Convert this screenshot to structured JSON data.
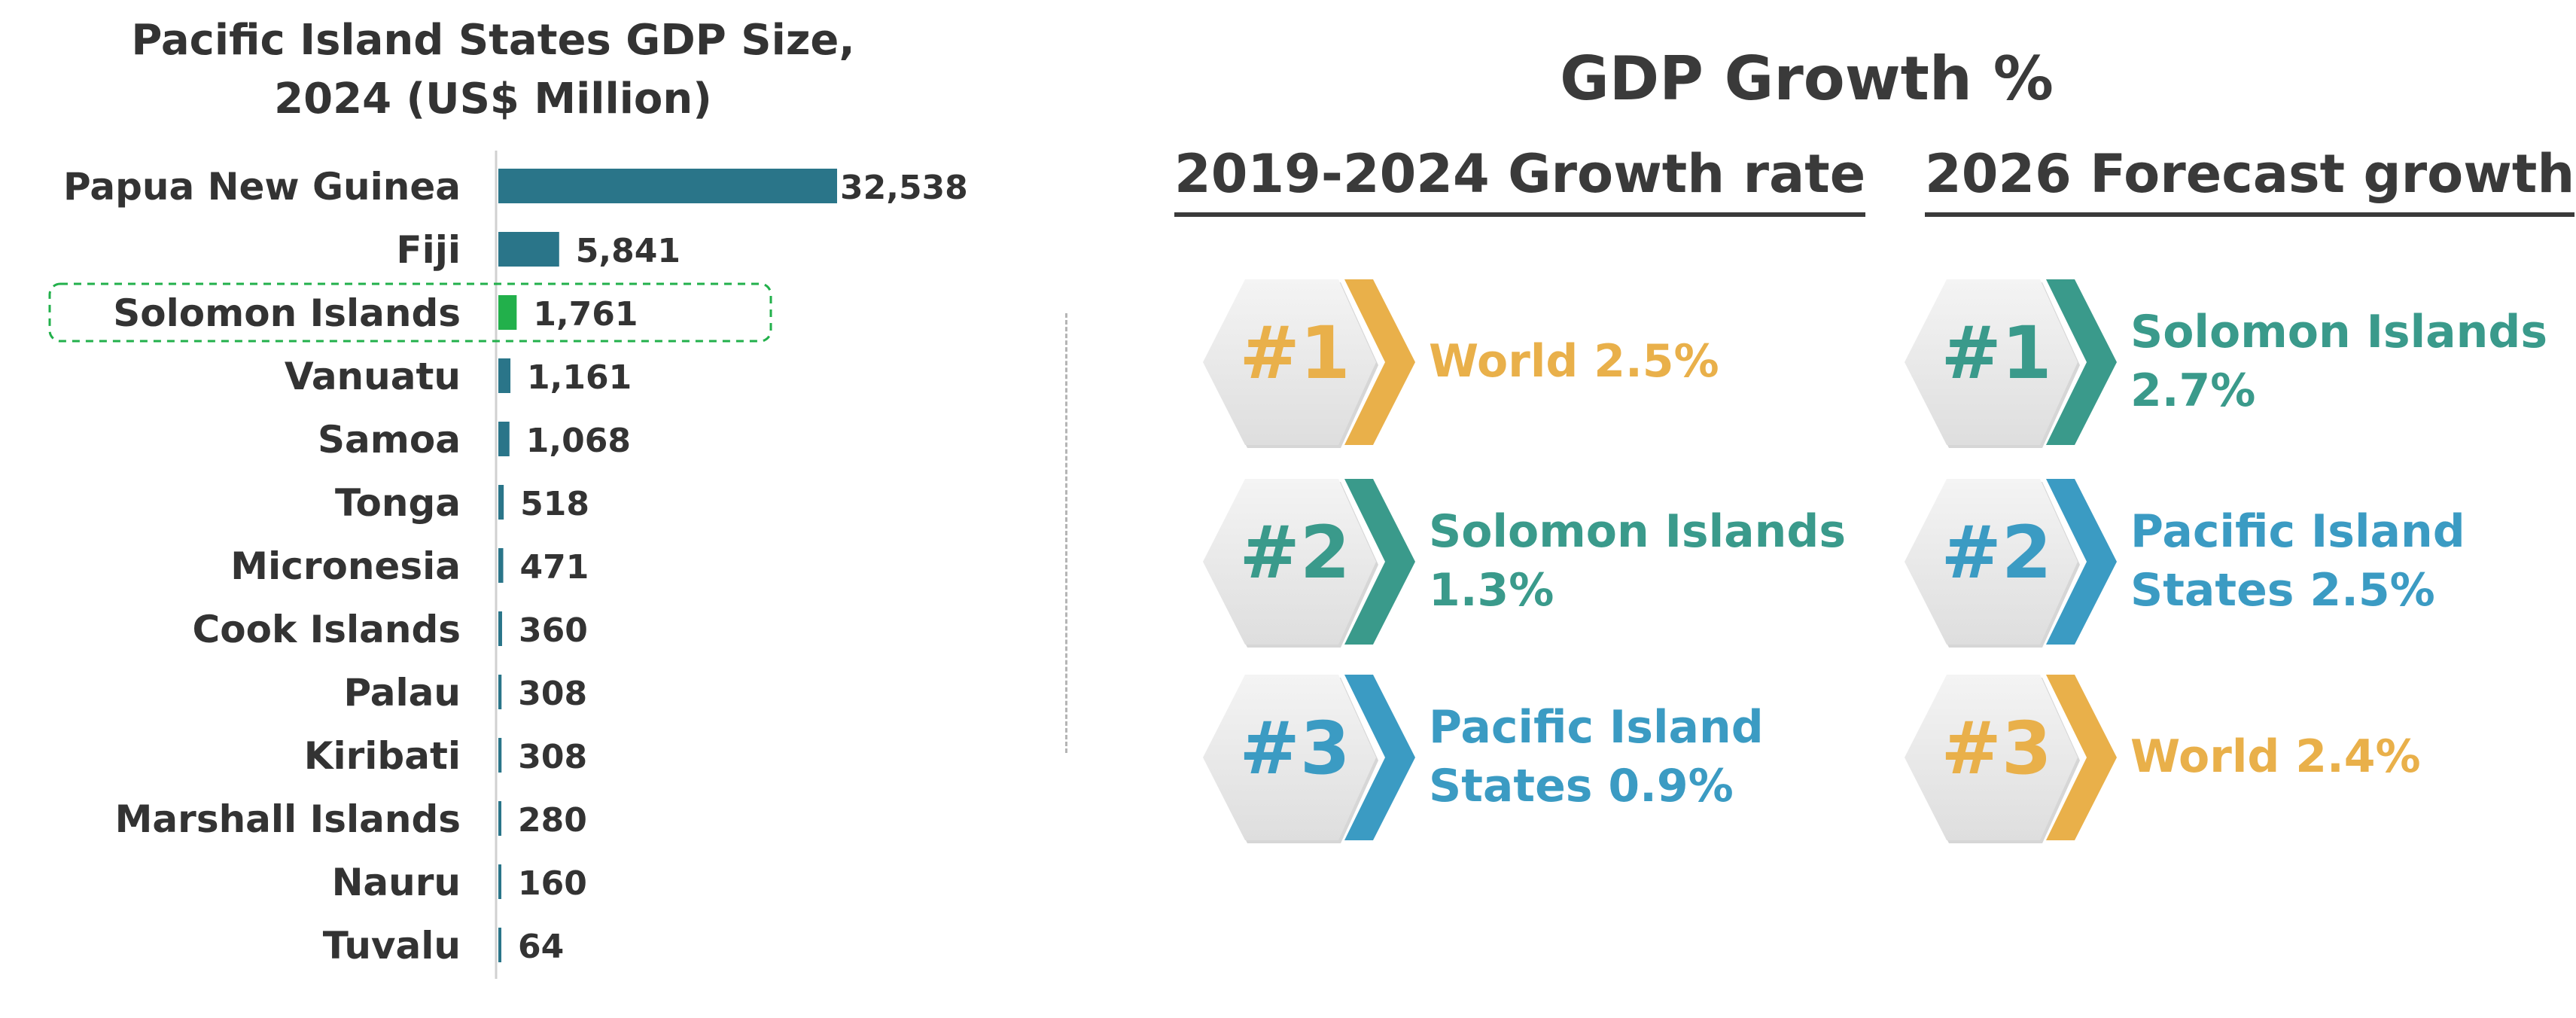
{
  "chart_data": {
    "type": "bar",
    "orientation": "horizontal",
    "title": "Pacific Island States GDP Size, 2024 (US$ Million)",
    "title_lines": [
      "Pacific Island States GDP Size,",
      "2024 (US$ Million)"
    ],
    "categories": [
      "Papua New Guinea",
      "Fiji",
      "Solomon Islands",
      "Vanuatu",
      "Samoa",
      "Tonga",
      "Micronesia",
      "Cook Islands",
      "Palau",
      "Kiribati",
      "Marshall Islands",
      "Nauru",
      "Tuvalu"
    ],
    "values": [
      32538,
      5841,
      1761,
      1161,
      1068,
      518,
      471,
      360,
      308,
      308,
      280,
      160,
      64
    ],
    "value_labels": [
      "32,538",
      "5,841",
      "1,761",
      "1,161",
      "1,068",
      "518",
      "471",
      "360",
      "308",
      "308",
      "280",
      "160",
      "64"
    ],
    "highlight": "Solomon Islands",
    "xlim": [
      0,
      32538
    ],
    "bar_color": "#2a7589",
    "highlight_color": "#22b04b",
    "grid": false,
    "legend": "none"
  },
  "growth": {
    "title": "GDP Growth %",
    "columns": [
      {
        "heading": "2019-2024 Growth rate",
        "items": [
          {
            "rank": "#1",
            "lines": [
              "World 2.5%"
            ],
            "color": "#e9b04a"
          },
          {
            "rank": "#2",
            "lines": [
              "Solomon Islands",
              "1.3%"
            ],
            "color": "#3a9a8b"
          },
          {
            "rank": "#3",
            "lines": [
              "Pacific Island",
              "States 0.9%"
            ],
            "color": "#3b9bc3"
          }
        ]
      },
      {
        "heading": "2026 Forecast growth",
        "items": [
          {
            "rank": "#1",
            "lines": [
              "Solomon Islands",
              "2.7%"
            ],
            "color": "#3a9a8b"
          },
          {
            "rank": "#2",
            "lines": [
              "Pacific Island",
              "States 2.5%"
            ],
            "color": "#3b9bc3"
          },
          {
            "rank": "#3",
            "lines": [
              "World 2.4%"
            ],
            "color": "#e9b04a"
          }
        ]
      }
    ]
  }
}
